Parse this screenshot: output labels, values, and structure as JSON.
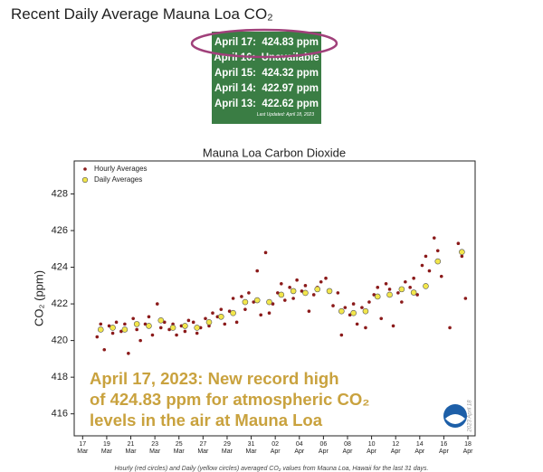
{
  "header": {
    "title": "Recent Daily Average Mauna Loa CO₂"
  },
  "readings": {
    "rows": [
      {
        "date": "April 17:",
        "value": "424.83 ppm"
      },
      {
        "date": "April 16:",
        "value": "Unavailable"
      },
      {
        "date": "April 15:",
        "value": "424.32 ppm"
      },
      {
        "date": "April 14:",
        "value": "422.97 ppm"
      },
      {
        "date": "April 13:",
        "value": "422.62 ppm"
      }
    ],
    "updated": "Last Updated: April 18, 2023"
  },
  "chart_data": {
    "type": "scatter",
    "title": "Mauna Loa Carbon Dioxide",
    "y_label": "CO₂ (ppm)",
    "xlim": [
      16.3,
      49.6
    ],
    "ylim": [
      414.8,
      429.8
    ],
    "yticks": [
      416,
      418,
      420,
      422,
      424,
      426,
      428
    ],
    "xticks": [
      {
        "value": 17,
        "label": "17",
        "month": "Mar"
      },
      {
        "value": 19,
        "label": "19",
        "month": "Mar"
      },
      {
        "value": 21,
        "label": "21",
        "month": "Mar"
      },
      {
        "value": 23,
        "label": "23",
        "month": "Mar"
      },
      {
        "value": 25,
        "label": "25",
        "month": "Mar"
      },
      {
        "value": 27,
        "label": "27",
        "month": "Mar"
      },
      {
        "value": 29,
        "label": "29",
        "month": "Mar"
      },
      {
        "value": 31,
        "label": "31",
        "month": "Mar"
      },
      {
        "value": 33,
        "label": "02",
        "month": "Apr"
      },
      {
        "value": 35,
        "label": "04",
        "month": "Apr"
      },
      {
        "value": 37,
        "label": "06",
        "month": "Apr"
      },
      {
        "value": 39,
        "label": "08",
        "month": "Apr"
      },
      {
        "value": 41,
        "label": "10",
        "month": "Apr"
      },
      {
        "value": 43,
        "label": "12",
        "month": "Apr"
      },
      {
        "value": 45,
        "label": "14",
        "month": "Apr"
      },
      {
        "value": 47,
        "label": "16",
        "month": "Apr"
      },
      {
        "value": 49,
        "label": "18",
        "month": "Apr"
      }
    ],
    "legend": "upper left",
    "series": [
      {
        "name": "Hourly Averages",
        "color": "#8b1a1a",
        "x": [
          18.2,
          18.5,
          18.8,
          19.2,
          19.5,
          19.8,
          20.2,
          20.5,
          20.8,
          21.2,
          21.5,
          21.8,
          22.2,
          22.5,
          22.8,
          23.2,
          23.5,
          23.8,
          24.2,
          24.5,
          24.8,
          25.2,
          25.5,
          25.8,
          26.2,
          26.5,
          26.8,
          27.2,
          27.5,
          27.8,
          28.2,
          28.5,
          28.8,
          29.2,
          29.5,
          29.8,
          30.2,
          30.5,
          30.8,
          31.2,
          31.5,
          31.8,
          32.2,
          32.5,
          32.8,
          33.2,
          33.5,
          33.8,
          34.2,
          34.5,
          34.8,
          35.2,
          35.5,
          35.8,
          36.2,
          36.5,
          36.8,
          37.2,
          37.5,
          37.8,
          38.2,
          38.5,
          38.8,
          39.2,
          39.5,
          39.8,
          40.2,
          40.5,
          40.8,
          41.2,
          41.5,
          41.8,
          42.2,
          42.5,
          42.8,
          43.2,
          43.5,
          43.8,
          44.2,
          44.5,
          44.8,
          45.2,
          45.5,
          45.8,
          46.2,
          46.5,
          46.8,
          47.5,
          48.2,
          48.5,
          48.8
        ],
        "values": [
          420.2,
          420.9,
          419.5,
          420.8,
          420.4,
          421.0,
          420.5,
          420.9,
          419.3,
          421.2,
          420.6,
          420.0,
          420.9,
          421.3,
          420.3,
          422.0,
          420.7,
          421.0,
          420.6,
          420.9,
          420.3,
          420.8,
          420.5,
          421.1,
          421.0,
          420.4,
          420.7,
          421.2,
          420.8,
          421.5,
          421.3,
          421.7,
          420.9,
          421.6,
          422.3,
          421.0,
          422.4,
          421.7,
          422.6,
          422.1,
          423.8,
          421.4,
          424.8,
          421.5,
          422.0,
          422.6,
          423.1,
          422.2,
          422.9,
          422.3,
          423.3,
          422.7,
          423.0,
          421.6,
          422.5,
          422.9,
          423.2,
          423.4,
          422.7,
          421.9,
          422.6,
          420.3,
          421.8,
          421.4,
          422.0,
          420.9,
          421.8,
          420.7,
          422.1,
          422.5,
          422.9,
          421.2,
          423.1,
          422.8,
          420.8,
          422.6,
          422.1,
          423.2,
          422.9,
          423.4,
          422.5,
          424.1,
          424.6,
          423.8,
          425.6,
          424.9,
          423.5,
          420.7,
          425.3,
          424.6,
          422.3
        ]
      },
      {
        "name": "Daily Averages",
        "color": "#f2e64b",
        "x": [
          18.5,
          19.5,
          20.5,
          21.5,
          22.5,
          23.5,
          24.5,
          25.5,
          26.5,
          27.5,
          28.5,
          29.5,
          30.5,
          31.5,
          32.5,
          33.5,
          34.5,
          35.5,
          36.5,
          37.5,
          38.5,
          39.5,
          40.5,
          41.5,
          42.5,
          43.5,
          44.5,
          45.5,
          46.5,
          48.5
        ],
        "values": [
          420.6,
          420.7,
          420.6,
          420.9,
          420.8,
          421.1,
          420.7,
          420.8,
          420.7,
          421.0,
          421.3,
          421.5,
          422.1,
          422.2,
          422.1,
          422.5,
          422.7,
          422.6,
          422.8,
          422.7,
          421.6,
          421.5,
          421.6,
          422.4,
          422.5,
          422.8,
          422.62,
          422.97,
          424.32,
          424.83
        ]
      }
    ],
    "annotation": [
      "April 17, 2023: New record high",
      "of 424.83 ppm for atmospheric CO₂",
      "levels in the air at Mauna Loa"
    ],
    "watermark": "2023 April 18",
    "caption": "Hourly (red circles) and Daily (yellow circles) averaged CO₂ values from Mauna Loa, Hawaii for the last 31 days."
  }
}
